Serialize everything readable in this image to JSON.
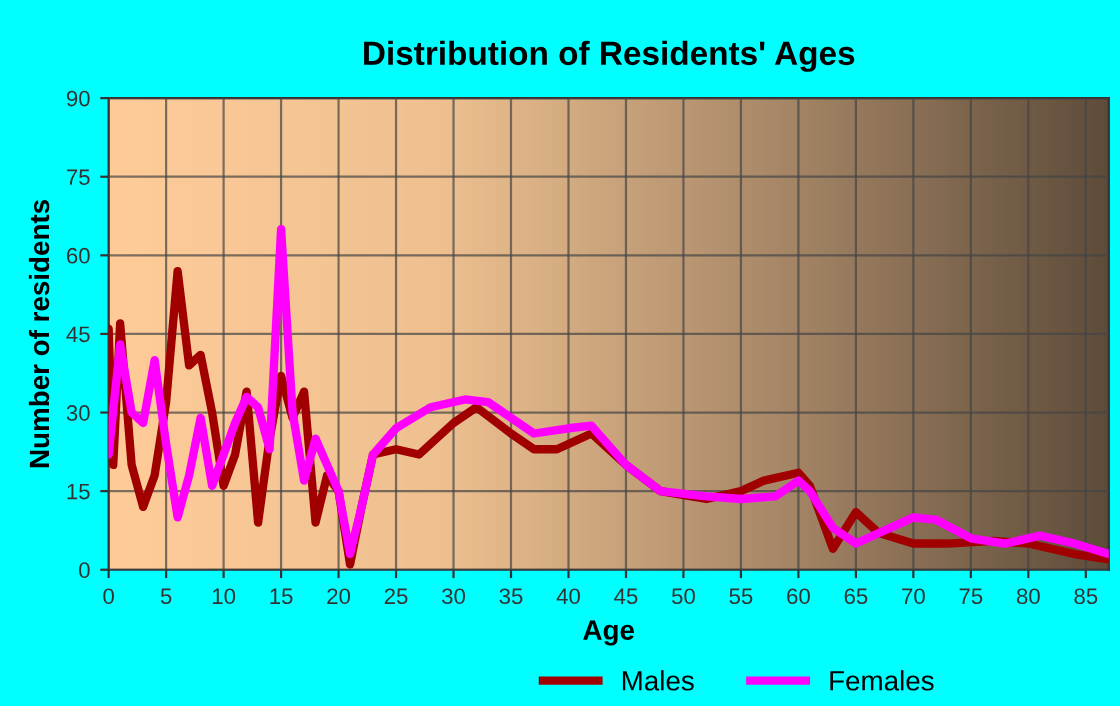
{
  "chart_data": {
    "type": "line",
    "title": "Distribution of Residents' Ages",
    "xlabel": "Age",
    "ylabel": "Number of residents",
    "xlim": [
      0,
      87
    ],
    "xticks": [
      0,
      5,
      10,
      15,
      20,
      25,
      30,
      35,
      40,
      45,
      50,
      55,
      60,
      65,
      70,
      75,
      80,
      85
    ],
    "ylim": [
      0,
      90
    ],
    "yticks": [
      0,
      15,
      30,
      45,
      60,
      75,
      90
    ],
    "grid": true,
    "legend": "bottom",
    "marker": "none",
    "line_style": "solid",
    "series": [
      {
        "name": "Males",
        "color": "#a00000",
        "x": [
          0,
          0.4,
          1,
          2,
          3,
          4,
          5,
          6,
          7,
          8,
          9,
          10,
          11,
          12,
          13,
          14,
          15,
          16,
          17,
          18,
          19,
          20,
          21,
          22,
          23,
          25,
          27,
          30,
          32,
          35,
          37,
          39,
          42,
          45,
          48,
          52,
          55,
          57,
          60,
          61,
          63,
          65,
          67,
          70,
          73,
          77,
          80,
          84,
          87
        ],
        "values": [
          46,
          20,
          47,
          20,
          12,
          18,
          32,
          57,
          39,
          41,
          30,
          16,
          22,
          34,
          9,
          25,
          37,
          29,
          34,
          9,
          18,
          15,
          1,
          12,
          22,
          23,
          22,
          28,
          31,
          26,
          23,
          23,
          26,
          20,
          15,
          13.5,
          15,
          17,
          18.5,
          16,
          4,
          11,
          7,
          5,
          5,
          5.5,
          5,
          3,
          2
        ]
      },
      {
        "name": "Females",
        "color": "#ff00ff",
        "x": [
          0,
          1,
          2,
          3,
          4,
          5,
          6,
          7,
          8,
          9,
          10,
          11,
          12,
          13,
          14,
          15,
          16,
          17,
          18,
          19,
          20,
          21,
          22,
          23,
          25,
          28,
          31,
          33,
          35,
          37,
          40,
          42,
          45,
          48,
          52,
          55,
          58,
          60,
          61,
          63,
          65,
          67,
          70,
          72,
          75,
          78,
          81,
          84,
          87
        ],
        "values": [
          22,
          43,
          30,
          28,
          40,
          24,
          10,
          18,
          29,
          16,
          22,
          28,
          33,
          31,
          23,
          65,
          30,
          17,
          25,
          20,
          15,
          3,
          12,
          22,
          27,
          31,
          32.5,
          32,
          29,
          26,
          27,
          27.5,
          20,
          15,
          14,
          13.5,
          14,
          17,
          15,
          8,
          5,
          7,
          10,
          9.5,
          6,
          5,
          6.5,
          5,
          3
        ]
      }
    ]
  }
}
